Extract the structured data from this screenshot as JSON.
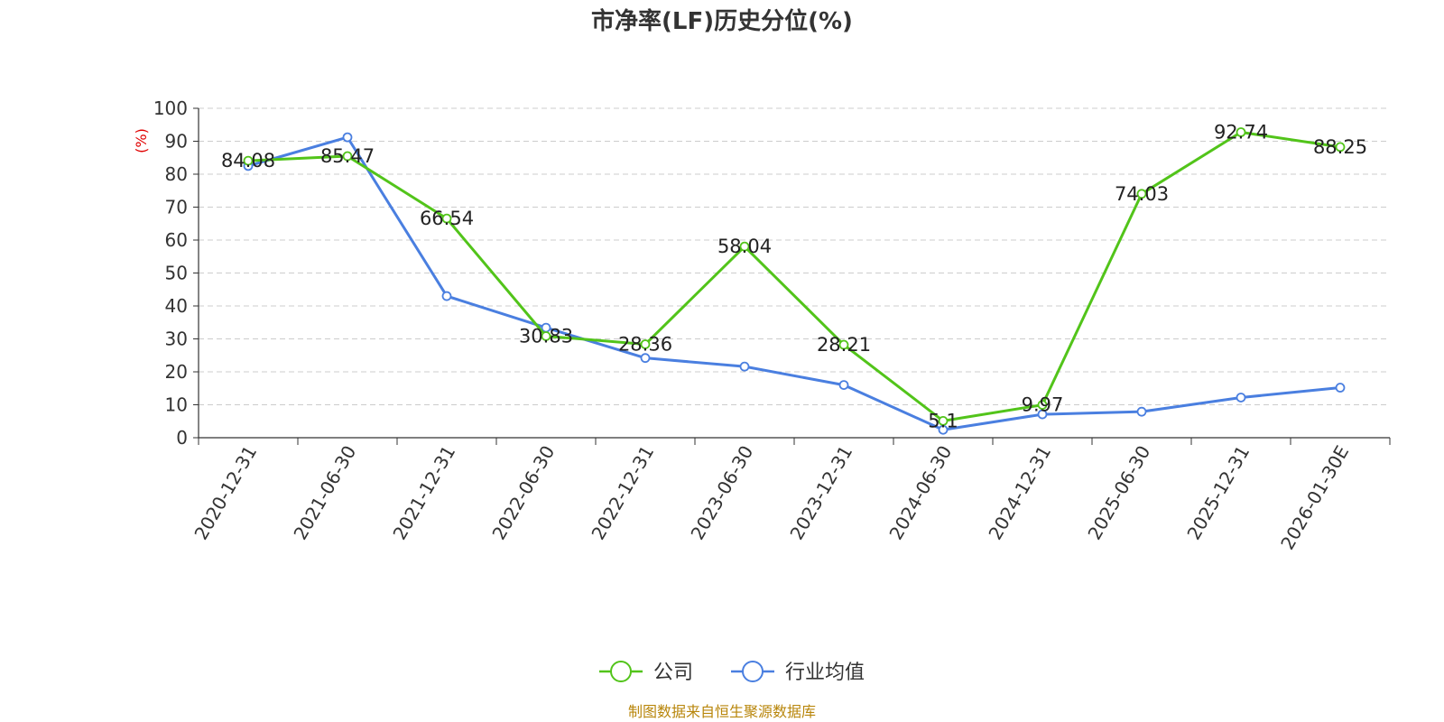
{
  "chart_data": {
    "type": "line",
    "title": "市净率(LF)历史分位(%)",
    "ylabel": "(%)",
    "xlabel": "",
    "ylim": [
      0,
      100
    ],
    "yticks": [
      0,
      10,
      20,
      30,
      40,
      50,
      60,
      70,
      80,
      90,
      100
    ],
    "y_tick_labels": [
      "0",
      "10",
      "20",
      "30",
      "40",
      "50",
      "60",
      "70",
      "80",
      "90",
      "100"
    ],
    "grid": true,
    "legend_position": "bottom-center",
    "categories": [
      "2020-12-31",
      "2021-06-30",
      "2021-12-31",
      "2022-06-30",
      "2022-12-31",
      "2023-06-30",
      "2023-12-31",
      "2024-06-30",
      "2024-12-31",
      "2025-06-30",
      "2025-12-31",
      "2026-01-30E"
    ],
    "series": [
      {
        "name": "公司",
        "color": "#52c41a",
        "values": [
          84.08,
          85.47,
          66.54,
          30.83,
          28.36,
          58.04,
          28.21,
          5.1,
          9.97,
          74.03,
          92.74,
          88.25
        ],
        "data_labels": [
          "84.08",
          "85.47",
          "66.54",
          "30.83",
          "28.36",
          "58.04",
          "28.21",
          "5.1",
          "9.97",
          "74.03",
          "92.74",
          "88.25"
        ]
      },
      {
        "name": "行业均值",
        "color": "#4a7fe0",
        "values": [
          82.5,
          91.2,
          43.0,
          33.4,
          24.2,
          21.6,
          16.0,
          2.4,
          7.1,
          7.9,
          12.2,
          15.2
        ]
      }
    ],
    "source": "制图数据来自恒生聚源数据库",
    "source_color": "#b8860b",
    "ylabel_color": "#e00000",
    "axis_color": "#333333",
    "grid_color": "#cccccc"
  }
}
